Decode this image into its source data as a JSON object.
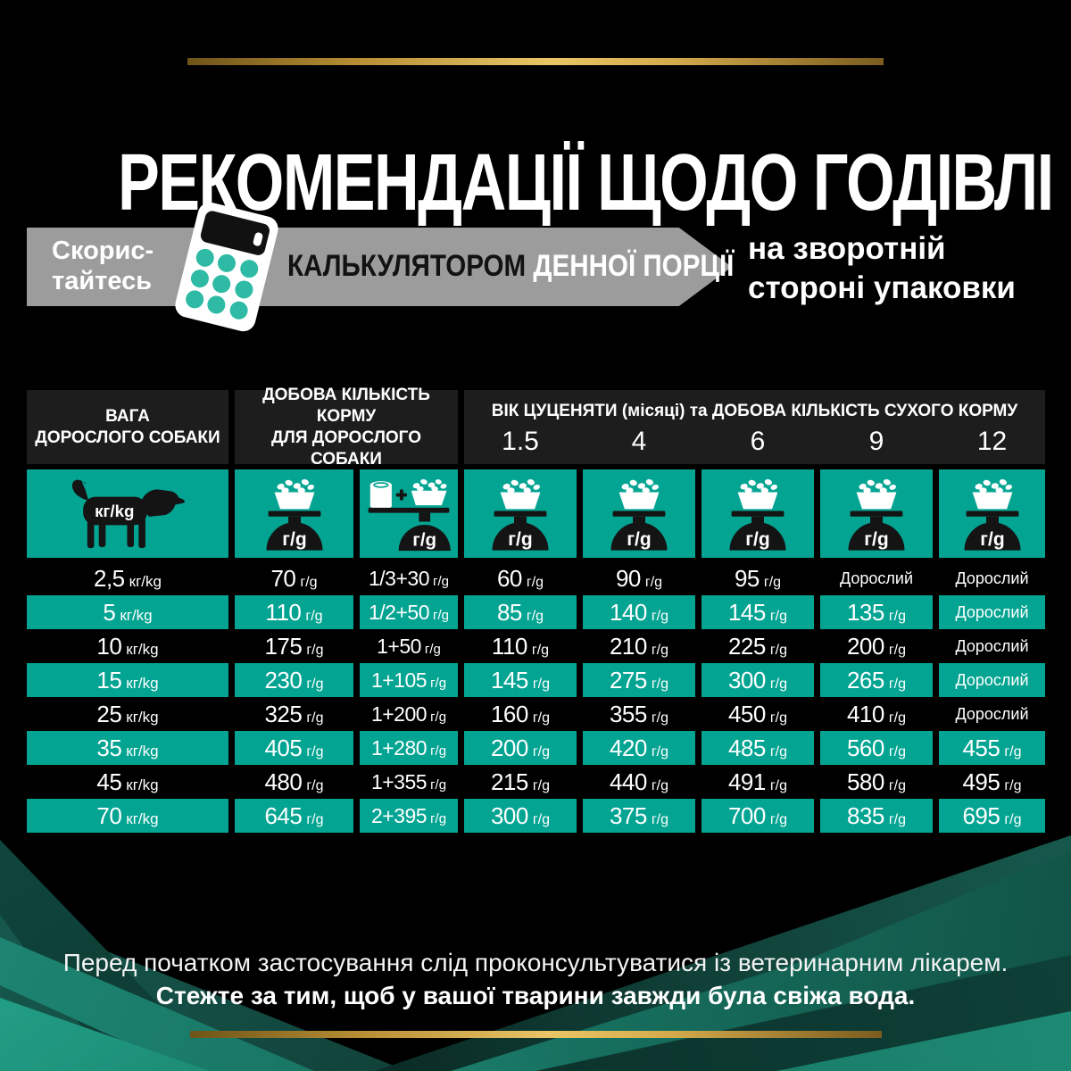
{
  "title": "РЕКОМЕНДАЦІЇ ЩОДО ГОДІВЛІ",
  "banner": {
    "use_line1": "Скорис-",
    "use_line2": "тайтесь",
    "calculator_dark": "КАЛЬКУЛЯТОРОМ",
    "calculator_light": "ДЕННОЇ ПОРЦІЇ",
    "location_line1": "на зворотній",
    "location_line2": "стороні упаковки"
  },
  "table": {
    "header": {
      "weight_line1": "ВАГА",
      "weight_line2": "ДОРОСЛОГО СОБАКИ",
      "adult_line1": "ДОБОВА КІЛЬКІСТЬ КОРМУ",
      "adult_line2": "ДЛЯ ДОРОСЛОГО СОБАКИ",
      "puppy_title": "ВІК ЦУЦЕНЯТИ (місяці) та ДОБОВА КІЛЬКІСТЬ СУХОГО КОРМУ",
      "puppy_ages": [
        "1.5",
        "4",
        "6",
        "9",
        "12"
      ]
    },
    "units": {
      "weight": "кг/kg",
      "grams": "г/g"
    },
    "adult_label": "Дорослий",
    "rows": [
      {
        "weight": "2,5",
        "values": [
          "70",
          "1/3+30",
          "60",
          "90",
          "95",
          "Дорослий",
          "Дорослий"
        ]
      },
      {
        "weight": "5",
        "values": [
          "110",
          "1/2+50",
          "85",
          "140",
          "145",
          "135",
          "Дорослий"
        ]
      },
      {
        "weight": "10",
        "values": [
          "175",
          "1+50",
          "110",
          "210",
          "225",
          "200",
          "Дорослий"
        ]
      },
      {
        "weight": "15",
        "values": [
          "230",
          "1+105",
          "145",
          "275",
          "300",
          "265",
          "Дорослий"
        ]
      },
      {
        "weight": "25",
        "values": [
          "325",
          "1+200",
          "160",
          "355",
          "450",
          "410",
          "Дорослий"
        ]
      },
      {
        "weight": "35",
        "values": [
          "405",
          "1+280",
          "200",
          "420",
          "485",
          "560",
          "455"
        ]
      },
      {
        "weight": "45",
        "values": [
          "480",
          "1+355",
          "215",
          "440",
          "491",
          "580",
          "495"
        ]
      },
      {
        "weight": "70",
        "values": [
          "645",
          "2+395",
          "300",
          "375",
          "700",
          "835",
          "695"
        ]
      }
    ]
  },
  "footer": {
    "line1": "Перед початком застосування слід проконсультуватися із ветеринарним лікарем.",
    "line2": "Стежте за тим, щоб у вашої тварини завжди була свіжа вода."
  },
  "colors": {
    "teal": "#04a492",
    "calc_button_teal": "#2ebaa4",
    "banner_gray": "#9c9c9c",
    "header_cell": "#1d1d1d",
    "gold": "#c99b3f",
    "black": "#000000",
    "white": "#ffffff"
  }
}
